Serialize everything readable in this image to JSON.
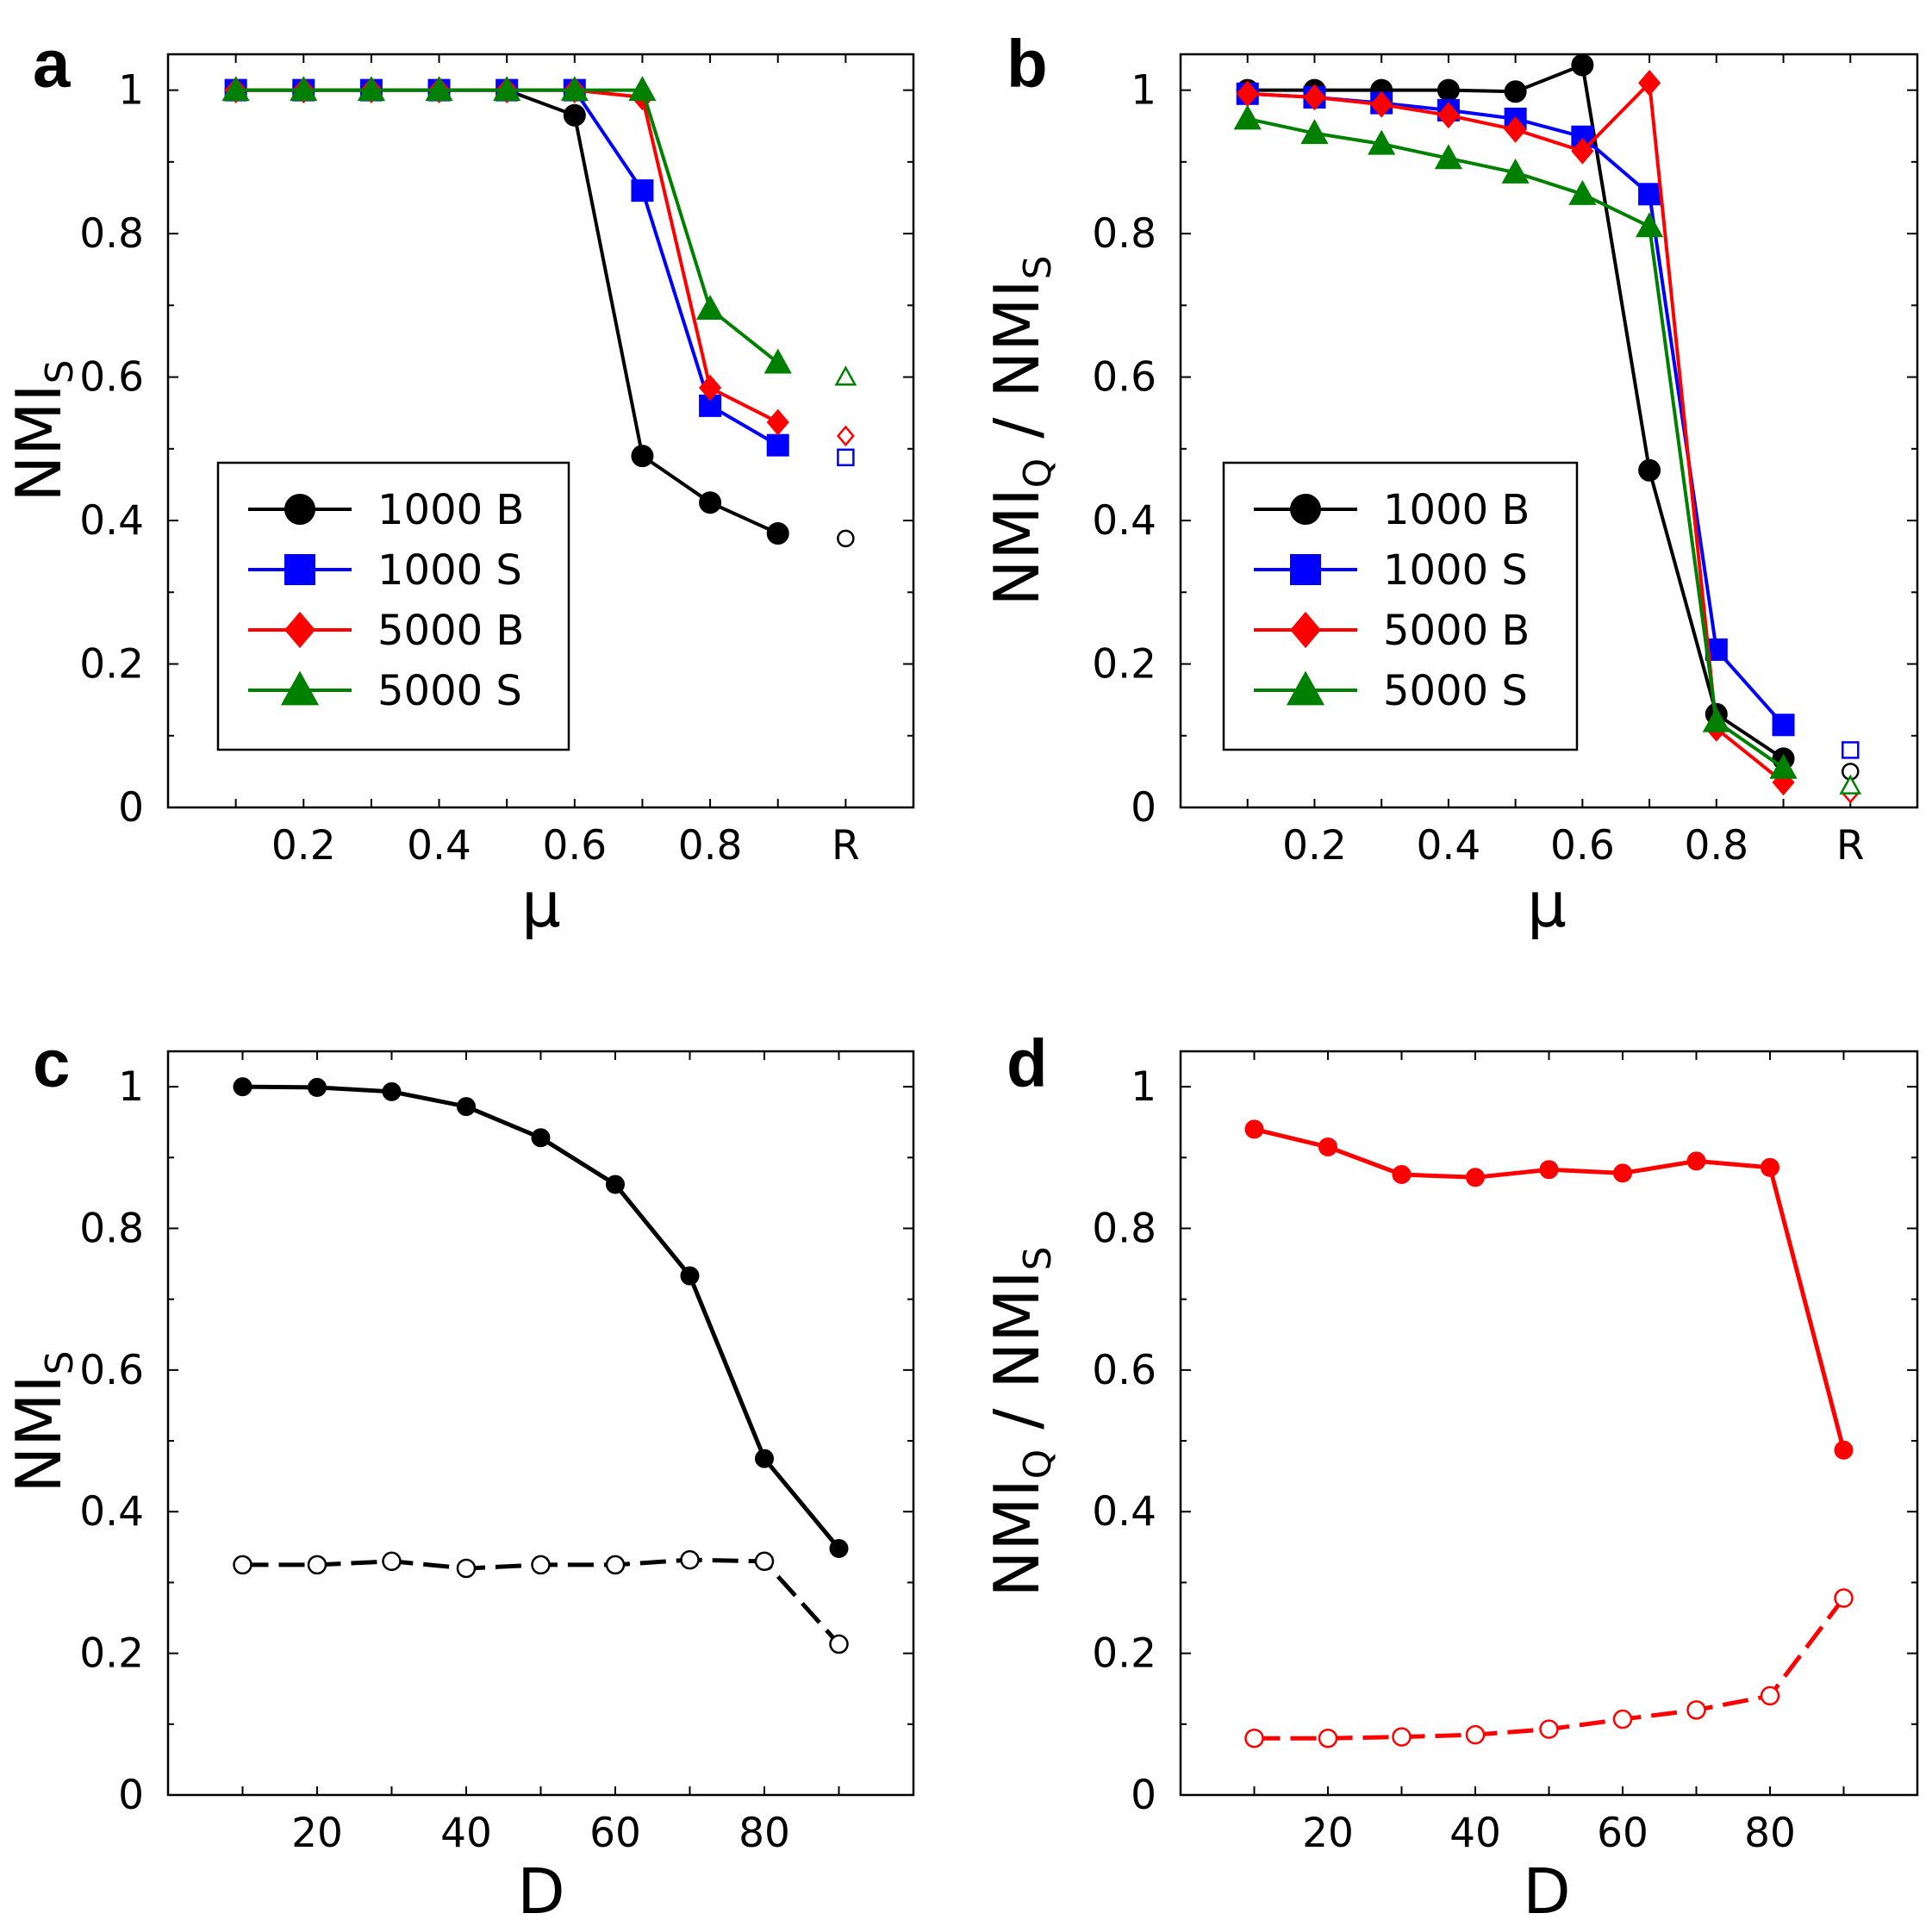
{
  "chart_data": [
    {
      "panel": "a",
      "type": "line",
      "xlabel": "μ",
      "ylabel": "NMI",
      "ylabel_sub": "S",
      "xlim": [
        0,
        1.1
      ],
      "ylim": [
        0,
        1.05
      ],
      "x": [
        0.1,
        0.2,
        0.3,
        0.4,
        0.5,
        0.6,
        0.7,
        0.8,
        0.9
      ],
      "x_ticks": [
        {
          "v": 0.2,
          "label": "0.2"
        },
        {
          "v": 0.4,
          "label": "0.4"
        },
        {
          "v": 0.6,
          "label": "0.6"
        },
        {
          "v": 0.8,
          "label": "0.8"
        },
        {
          "v": 1.0,
          "label": "R"
        }
      ],
      "y_ticks": [
        {
          "v": 0,
          "label": "0"
        },
        {
          "v": 0.2,
          "label": "0.2"
        },
        {
          "v": 0.4,
          "label": "0.4"
        },
        {
          "v": 0.6,
          "label": "0.6"
        },
        {
          "v": 0.8,
          "label": "0.8"
        },
        {
          "v": 1,
          "label": "1"
        }
      ],
      "legend": true,
      "legend_position": "lower-left",
      "series": [
        {
          "name": "1000 B",
          "color": "#000000",
          "marker": "circle",
          "values": [
            1.0,
            1.0,
            1.0,
            1.0,
            1.0,
            0.965,
            0.49,
            0.425,
            0.382
          ],
          "random": 0.375
        },
        {
          "name": "1000 S",
          "color": "#0000ff",
          "marker": "square",
          "values": [
            1.0,
            1.0,
            1.0,
            1.0,
            1.0,
            1.0,
            0.86,
            0.56,
            0.505
          ],
          "random": 0.488
        },
        {
          "name": "5000 B",
          "color": "#ff0000",
          "marker": "diamond",
          "values": [
            1.0,
            1.0,
            1.0,
            1.0,
            1.0,
            1.0,
            0.99,
            0.585,
            0.537
          ],
          "random": 0.518
        },
        {
          "name": "5000 S",
          "color": "#008000",
          "marker": "triangle",
          "values": [
            1.0,
            1.0,
            1.0,
            1.0,
            1.0,
            1.0,
            1.0,
            0.695,
            0.62
          ],
          "random": 0.6
        }
      ]
    },
    {
      "panel": "b",
      "type": "line",
      "xlabel": "μ",
      "ylabel": "NMI",
      "ylabel_sub": "Q",
      "ylabel_mid": " / NMI",
      "ylabel_sub2": "S",
      "xlim": [
        0,
        1.1
      ],
      "ylim": [
        0,
        1.05
      ],
      "x": [
        0.1,
        0.2,
        0.3,
        0.4,
        0.5,
        0.6,
        0.7,
        0.8,
        0.9
      ],
      "x_ticks": [
        {
          "v": 0.2,
          "label": "0.2"
        },
        {
          "v": 0.4,
          "label": "0.4"
        },
        {
          "v": 0.6,
          "label": "0.6"
        },
        {
          "v": 0.8,
          "label": "0.8"
        },
        {
          "v": 1.0,
          "label": "R"
        }
      ],
      "y_ticks": [
        {
          "v": 0,
          "label": "0"
        },
        {
          "v": 0.2,
          "label": "0.2"
        },
        {
          "v": 0.4,
          "label": "0.4"
        },
        {
          "v": 0.6,
          "label": "0.6"
        },
        {
          "v": 0.8,
          "label": "0.8"
        },
        {
          "v": 1,
          "label": "1"
        }
      ],
      "legend": true,
      "legend_position": "lower-left",
      "series": [
        {
          "name": "1000 B",
          "color": "#000000",
          "marker": "circle",
          "values": [
            1.0,
            1.0,
            1.0,
            1.0,
            0.998,
            1.035,
            0.47,
            0.13,
            0.068
          ],
          "random": 0.05
        },
        {
          "name": "1000 S",
          "color": "#0000ff",
          "marker": "square",
          "values": [
            0.995,
            0.99,
            0.982,
            0.972,
            0.96,
            0.935,
            0.855,
            0.22,
            0.115
          ],
          "random": 0.08
        },
        {
          "name": "5000 B",
          "color": "#ff0000",
          "marker": "diamond",
          "values": [
            0.995,
            0.99,
            0.98,
            0.965,
            0.945,
            0.915,
            1.01,
            0.11,
            0.035
          ],
          "random": 0.02
        },
        {
          "name": "5000 S",
          "color": "#008000",
          "marker": "triangle",
          "values": [
            0.96,
            0.94,
            0.925,
            0.905,
            0.885,
            0.855,
            0.81,
            0.12,
            0.055
          ],
          "random": 0.03
        }
      ]
    },
    {
      "panel": "c",
      "type": "line",
      "xlabel": "D",
      "ylabel": "NMI",
      "ylabel_sub": "S",
      "xlim": [
        0,
        100
      ],
      "ylim": [
        0,
        1.05
      ],
      "x": [
        10,
        20,
        30,
        40,
        50,
        60,
        70,
        80,
        90
      ],
      "x_ticks": [
        {
          "v": 20,
          "label": "20"
        },
        {
          "v": 40,
          "label": "40"
        },
        {
          "v": 60,
          "label": "60"
        },
        {
          "v": 80,
          "label": "80"
        }
      ],
      "y_ticks": [
        {
          "v": 0,
          "label": "0"
        },
        {
          "v": 0.2,
          "label": "0.2"
        },
        {
          "v": 0.4,
          "label": "0.4"
        },
        {
          "v": 0.6,
          "label": "0.6"
        },
        {
          "v": 0.8,
          "label": "0.8"
        },
        {
          "v": 1,
          "label": "1"
        }
      ],
      "legend": false,
      "series": [
        {
          "name": "solid",
          "color": "#000000",
          "marker": "circle",
          "filled": true,
          "dashed": false,
          "values": [
            1.0,
            0.999,
            0.993,
            0.972,
            0.928,
            0.862,
            0.733,
            0.475,
            0.348
          ]
        },
        {
          "name": "open",
          "color": "#000000",
          "marker": "circle",
          "filled": false,
          "dashed": true,
          "values": [
            0.325,
            0.325,
            0.33,
            0.32,
            0.325,
            0.325,
            0.332,
            0.33,
            0.213
          ]
        }
      ]
    },
    {
      "panel": "d",
      "type": "line",
      "xlabel": "D",
      "ylabel": "NMI",
      "ylabel_sub": "Q",
      "ylabel_mid": " / NMI",
      "ylabel_sub2": "S",
      "xlim": [
        0,
        100
      ],
      "ylim": [
        0,
        1.05
      ],
      "x": [
        10,
        20,
        30,
        40,
        50,
        60,
        70,
        80,
        90
      ],
      "x_ticks": [
        {
          "v": 20,
          "label": "20"
        },
        {
          "v": 40,
          "label": "40"
        },
        {
          "v": 60,
          "label": "60"
        },
        {
          "v": 80,
          "label": "80"
        }
      ],
      "y_ticks": [
        {
          "v": 0,
          "label": "0"
        },
        {
          "v": 0.2,
          "label": "0.2"
        },
        {
          "v": 0.4,
          "label": "0.4"
        },
        {
          "v": 0.6,
          "label": "0.6"
        },
        {
          "v": 0.8,
          "label": "0.8"
        },
        {
          "v": 1,
          "label": "1"
        }
      ],
      "legend": false,
      "series": [
        {
          "name": "solid",
          "color": "#ff0000",
          "marker": "circle",
          "filled": true,
          "dashed": false,
          "values": [
            0.94,
            0.915,
            0.876,
            0.872,
            0.883,
            0.878,
            0.895,
            0.886,
            0.487
          ]
        },
        {
          "name": "open",
          "color": "#ff0000",
          "marker": "circle",
          "filled": false,
          "dashed": true,
          "values": [
            0.08,
            0.08,
            0.082,
            0.085,
            0.093,
            0.107,
            0.12,
            0.14,
            0.278
          ]
        }
      ]
    }
  ]
}
